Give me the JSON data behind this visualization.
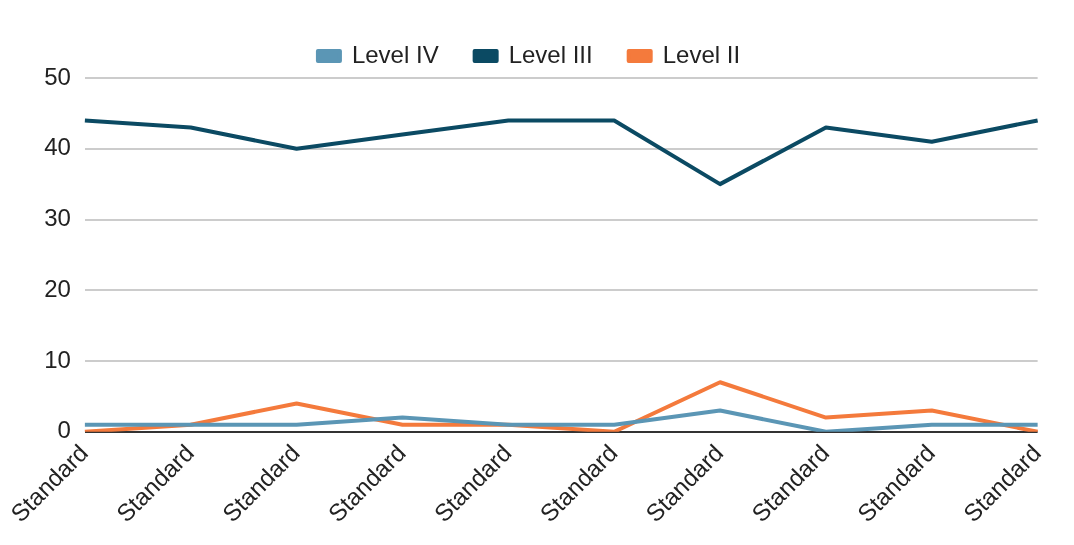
{
  "chart_data": {
    "type": "line",
    "categories": [
      "Standard",
      "Standard",
      "Standard",
      "Standard",
      "Standard",
      "Standard",
      "Standard",
      "Standard",
      "Standard",
      "Standard"
    ],
    "series": [
      {
        "name": "Level IV",
        "color": "#5b96b5",
        "values": [
          1,
          1,
          1,
          2,
          1,
          1,
          3,
          0,
          1,
          1
        ]
      },
      {
        "name": "Level III",
        "color": "#0b4a63",
        "values": [
          44,
          43,
          40,
          42,
          44,
          44,
          35,
          43,
          41,
          44
        ]
      },
      {
        "name": "Level II",
        "color": "#f47a3c",
        "values": [
          0,
          1,
          4,
          1,
          1,
          0,
          7,
          2,
          3,
          0
        ]
      }
    ],
    "ylim": [
      0,
      50
    ],
    "yticks": [
      0,
      10,
      20,
      30,
      40,
      50
    ],
    "grid": "y",
    "legend": "top",
    "marker": "none"
  }
}
